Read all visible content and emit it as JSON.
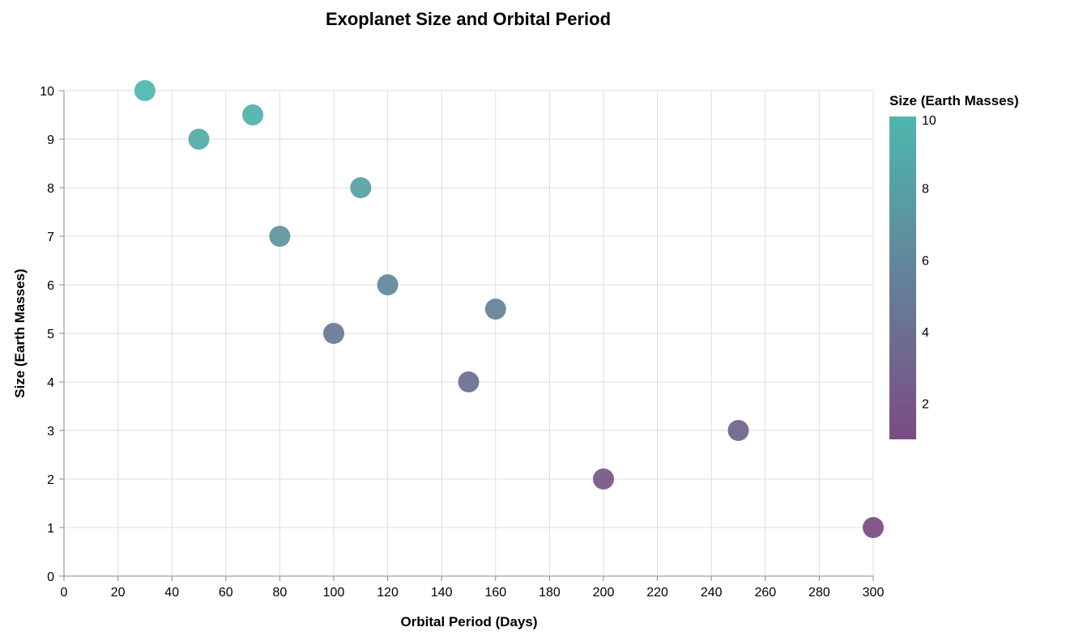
{
  "chart_data": {
    "type": "scatter",
    "title": "Exoplanet Size and Orbital Period",
    "xlabel": "Orbital Period (Days)",
    "ylabel": "Size (Earth Masses)",
    "xlim": [
      0,
      300
    ],
    "ylim": [
      0,
      10
    ],
    "x_ticks": [
      0,
      20,
      40,
      60,
      80,
      100,
      120,
      140,
      160,
      180,
      200,
      220,
      240,
      260,
      280,
      300
    ],
    "y_ticks": [
      0,
      1,
      2,
      3,
      4,
      5,
      6,
      7,
      8,
      9,
      10
    ],
    "grid": true,
    "legend": {
      "title": "Size (Earth Masses)",
      "type": "gradient",
      "placement": "right",
      "domain": [
        1,
        10
      ],
      "ticks": [
        2,
        4,
        6,
        8,
        10
      ],
      "color_low": "#7b4b84",
      "color_high": "#4db8ad"
    },
    "points": [
      {
        "x": 30,
        "y": 10
      },
      {
        "x": 50,
        "y": 9
      },
      {
        "x": 70,
        "y": 9.5
      },
      {
        "x": 80,
        "y": 7
      },
      {
        "x": 100,
        "y": 5
      },
      {
        "x": 110,
        "y": 8
      },
      {
        "x": 120,
        "y": 6
      },
      {
        "x": 150,
        "y": 4
      },
      {
        "x": 160,
        "y": 5.5
      },
      {
        "x": 200,
        "y": 2
      },
      {
        "x": 250,
        "y": 3
      },
      {
        "x": 300,
        "y": 1
      }
    ]
  }
}
